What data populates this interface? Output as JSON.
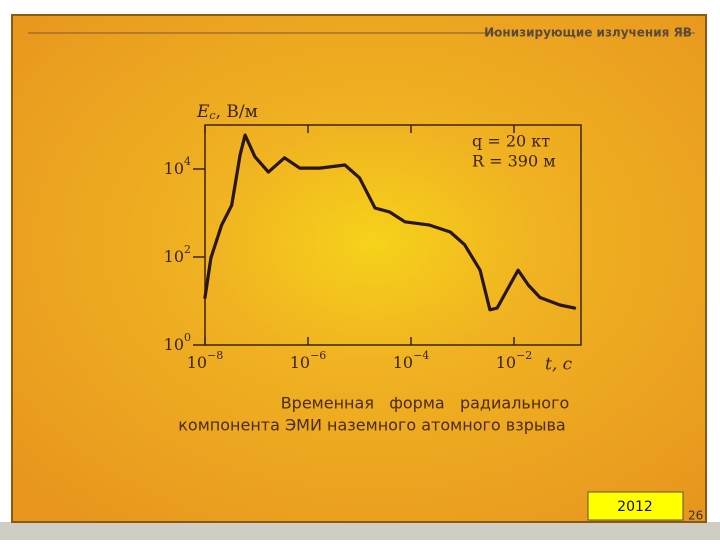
{
  "header": {
    "title": "Ионизирующие излучения ЯВ"
  },
  "chart_data": {
    "type": "line",
    "log_x": true,
    "log_y": true,
    "y_label": {
      "symbol": "E",
      "subscript": "c",
      "unit": ", В/м"
    },
    "x_label": "t, с",
    "annotations": [
      "q = 20 кт",
      "R = 390 м"
    ],
    "caption": [
      "Временная   форма   радиального",
      "компонента ЭМИ наземного атомного взрыва"
    ],
    "xlim": [
      1e-08,
      0.2
    ],
    "ylim": [
      1,
      100000
    ],
    "xticks": [
      {
        "value": 1e-08,
        "label": "10",
        "exponent": "−8"
      },
      {
        "value": 1e-06,
        "label": "10",
        "exponent": "−6"
      },
      {
        "value": 0.0001,
        "label": "10",
        "exponent": "−4"
      },
      {
        "value": 0.01,
        "label": "10",
        "exponent": "−2"
      }
    ],
    "yticks": [
      {
        "value": 1,
        "label": "10",
        "exponent": "0"
      },
      {
        "value": 100,
        "label": "10",
        "exponent": "2"
      },
      {
        "value": 10000,
        "label": "10",
        "exponent": "4"
      }
    ],
    "series": [
      {
        "color": "#2a1606",
        "x": [
          1e-08,
          1.3e-08,
          2.1e-08,
          3.3e-08,
          4.8e-08,
          6e-08,
          9.3e-08,
          1.7e-07,
          3.5e-07,
          6.9e-07,
          1.7e-06,
          5.2e-06,
          1e-05,
          2e-05,
          3.9e-05,
          7.6e-05,
          0.00023,
          0.00058,
          0.0011,
          0.0022,
          0.0034,
          0.0047,
          0.0083,
          0.012,
          0.019,
          0.032,
          0.078,
          0.15
        ],
        "values": [
          12,
          95,
          530,
          1500,
          21000,
          59000,
          19000,
          8500,
          18000,
          10500,
          10500,
          12300,
          6300,
          1300,
          1050,
          630,
          530,
          370,
          190,
          50,
          6.3,
          6.9,
          23,
          50,
          23,
          12,
          8.1,
          6.9
        ]
      }
    ]
  },
  "footer": {
    "year": "2012",
    "page": "26"
  }
}
